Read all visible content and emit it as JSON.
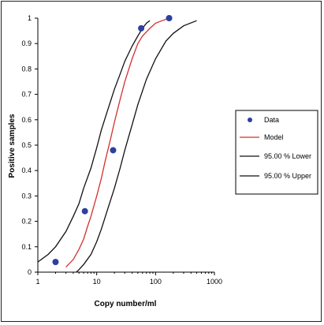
{
  "chart_data": {
    "type": "scatter",
    "title": "",
    "xlabel": "Copy number/ml",
    "ylabel": "Positive samples",
    "xscale": "log",
    "xlim": [
      1,
      1000
    ],
    "ylim": [
      0,
      1
    ],
    "grid": false,
    "legend_position": "right",
    "x_ticks": [
      1,
      10,
      100,
      1000
    ],
    "x_tick_labels": [
      "1",
      "10",
      "100",
      "1000"
    ],
    "y_ticks": [
      0,
      0.1,
      0.2,
      0.3,
      0.4,
      0.5,
      0.6,
      0.7,
      0.8,
      0.9,
      1
    ],
    "y_tick_labels": [
      "0",
      "0.1",
      "0.2",
      "0.3",
      "0.4",
      "0.5",
      "0.6",
      "0.7",
      "0.8",
      "0.9",
      "1"
    ],
    "series": [
      {
        "name": "Data",
        "kind": "points",
        "color": "#2e3f9e",
        "x": [
          2,
          6.3,
          19,
          57,
          170
        ],
        "y": [
          0.04,
          0.24,
          0.48,
          0.96,
          1.0
        ]
      },
      {
        "name": "Model",
        "kind": "line",
        "color": "#d0312d",
        "x": [
          3,
          4,
          5,
          6,
          7,
          8,
          10,
          12,
          14,
          17,
          20,
          25,
          30,
          40,
          50,
          60,
          80,
          100,
          130,
          170
        ],
        "y": [
          0.02,
          0.05,
          0.09,
          0.13,
          0.18,
          0.22,
          0.3,
          0.37,
          0.44,
          0.52,
          0.59,
          0.68,
          0.75,
          0.84,
          0.9,
          0.93,
          0.96,
          0.98,
          0.99,
          1.0
        ]
      },
      {
        "name": "95.00 % Lower",
        "kind": "line",
        "color": "#111111",
        "x": [
          1,
          1.5,
          2,
          3,
          4,
          5,
          6,
          8,
          10,
          12,
          15,
          20,
          25,
          30,
          40,
          50,
          60,
          70,
          80
        ],
        "y": [
          0.04,
          0.07,
          0.1,
          0.16,
          0.22,
          0.27,
          0.33,
          0.41,
          0.49,
          0.56,
          0.63,
          0.72,
          0.78,
          0.83,
          0.89,
          0.93,
          0.96,
          0.98,
          0.99
        ]
      },
      {
        "name": "95.00 % Upper",
        "kind": "line",
        "color": "#111111",
        "x": [
          4.5,
          5,
          6,
          8,
          10,
          12,
          15,
          20,
          25,
          30,
          40,
          50,
          70,
          100,
          150,
          200,
          300,
          500
        ],
        "y": [
          0.0,
          0.01,
          0.03,
          0.07,
          0.12,
          0.17,
          0.24,
          0.33,
          0.41,
          0.48,
          0.58,
          0.66,
          0.76,
          0.84,
          0.91,
          0.94,
          0.97,
          0.99
        ]
      }
    ]
  }
}
